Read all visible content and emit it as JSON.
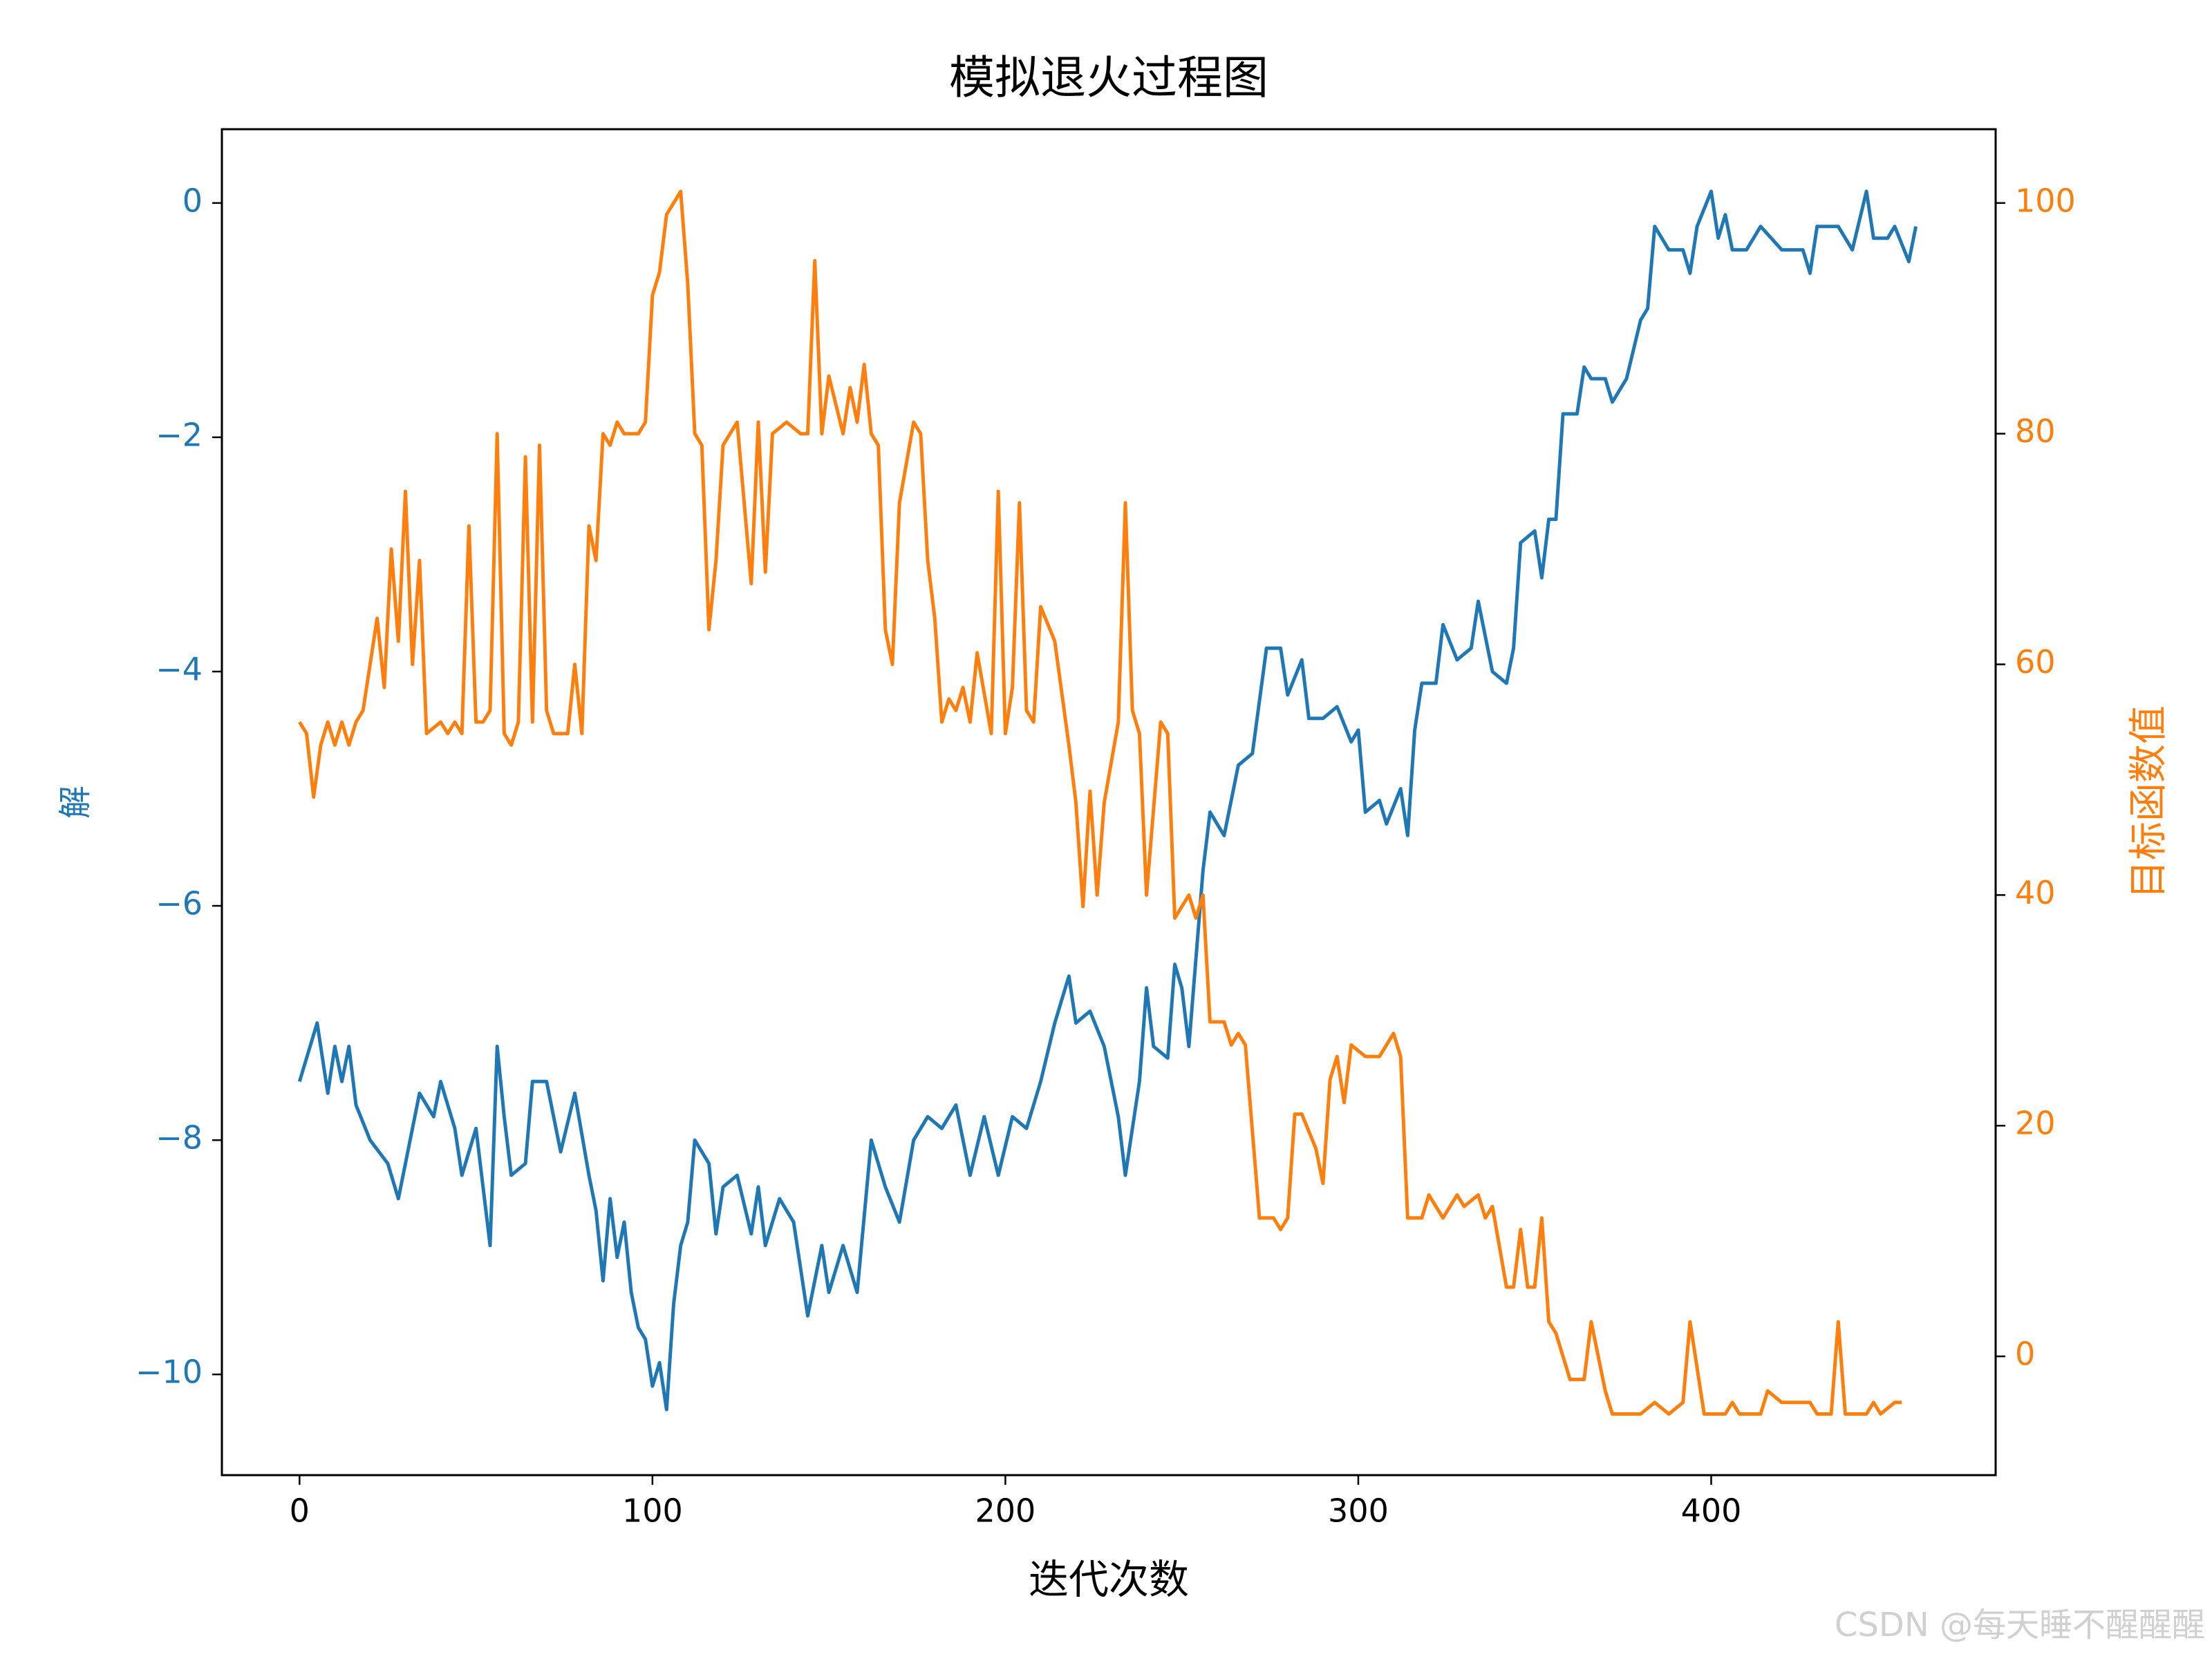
{
  "chart_data": {
    "type": "line",
    "title": "模拟退火过程图",
    "xlabel": "迭代次数",
    "ylabel": "解",
    "y2label": "目标函数值",
    "watermark": "CSDN @每天睡不醒醒醒",
    "xlim": [
      -22,
      480.6
    ],
    "ylim": [
      -10.86,
      0.63
    ],
    "y2lim": [
      -10.3,
      106.4
    ],
    "xticks": [
      0,
      100,
      200,
      300,
      400
    ],
    "yticks": [
      {
        "value": -10,
        "label": "−10"
      },
      {
        "value": -8,
        "label": "−8"
      },
      {
        "value": -6,
        "label": "−6"
      },
      {
        "value": -4,
        "label": "−4"
      },
      {
        "value": -2,
        "label": "−2"
      },
      0
    ],
    "y2ticks": [
      0,
      20,
      40,
      60,
      80,
      100
    ],
    "ycolor": "#1f77b4",
    "y2color": "#ff7f0e",
    "series": [
      {
        "name": "解",
        "color": "#1f77b4",
        "axis": "y",
        "x": [
          0,
          5,
          8,
          10,
          12,
          14,
          16,
          20,
          25,
          28,
          30,
          34,
          38,
          40,
          44,
          46,
          50,
          54,
          56,
          58,
          60,
          64,
          66,
          70,
          74,
          78,
          82,
          84,
          86,
          88,
          90,
          92,
          94,
          96,
          98,
          100,
          102,
          104,
          106,
          108,
          110,
          112,
          116,
          118,
          120,
          124,
          128,
          130,
          132,
          136,
          140,
          144,
          148,
          150,
          154,
          158,
          162,
          166,
          170,
          174,
          178,
          182,
          186,
          190,
          194,
          198,
          202,
          206,
          210,
          214,
          218,
          220,
          224,
          228,
          232,
          234,
          238,
          240,
          242,
          246,
          248,
          250,
          252,
          256,
          258,
          262,
          266,
          270,
          274,
          278,
          280,
          284,
          286,
          290,
          294,
          298,
          300,
          302,
          306,
          308,
          312,
          314,
          316,
          318,
          322,
          324,
          328,
          332,
          334,
          338,
          342,
          344,
          346,
          350,
          352,
          354,
          356,
          358,
          362,
          364,
          366,
          370,
          372,
          376,
          380,
          382,
          384,
          388,
          392,
          394,
          396,
          400,
          402,
          404,
          406,
          410,
          414,
          420,
          426,
          428,
          430,
          436,
          440,
          444,
          446,
          450,
          452,
          456,
          458
        ],
        "values": [
          -7.5,
          -7.0,
          -7.6,
          -7.2,
          -7.5,
          -7.2,
          -7.7,
          -8.0,
          -8.2,
          -8.5,
          -8.2,
          -7.6,
          -7.8,
          -7.5,
          -7.9,
          -8.3,
          -7.9,
          -8.9,
          -7.2,
          -7.8,
          -8.3,
          -8.2,
          -7.5,
          -7.5,
          -8.1,
          -7.6,
          -8.3,
          -8.6,
          -9.2,
          -8.5,
          -9.0,
          -8.7,
          -9.3,
          -9.6,
          -9.7,
          -10.1,
          -9.9,
          -10.3,
          -9.4,
          -8.9,
          -8.7,
          -8.0,
          -8.2,
          -8.8,
          -8.4,
          -8.3,
          -8.8,
          -8.4,
          -8.9,
          -8.5,
          -8.7,
          -9.5,
          -8.9,
          -9.3,
          -8.9,
          -9.3,
          -8.0,
          -8.4,
          -8.7,
          -8.0,
          -7.8,
          -7.9,
          -7.7,
          -8.3,
          -7.8,
          -8.3,
          -7.8,
          -7.9,
          -7.5,
          -7.0,
          -6.6,
          -7.0,
          -6.9,
          -7.2,
          -7.8,
          -8.3,
          -7.5,
          -6.7,
          -7.2,
          -7.3,
          -6.5,
          -6.7,
          -7.2,
          -5.7,
          -5.2,
          -5.4,
          -4.8,
          -4.7,
          -3.8,
          -3.8,
          -4.2,
          -3.9,
          -4.4,
          -4.4,
          -4.3,
          -4.6,
          -4.5,
          -5.2,
          -5.1,
          -5.3,
          -5.0,
          -5.4,
          -4.5,
          -4.1,
          -4.1,
          -3.6,
          -3.9,
          -3.8,
          -3.4,
          -4.0,
          -4.1,
          -3.8,
          -2.9,
          -2.8,
          -3.2,
          -2.7,
          -2.7,
          -1.8,
          -1.8,
          -1.4,
          -1.5,
          -1.5,
          -1.7,
          -1.5,
          -1.0,
          -0.9,
          -0.2,
          -0.4,
          -0.4,
          -0.6,
          -0.2,
          0.1,
          -0.3,
          -0.1,
          -0.4,
          -0.4,
          -0.2,
          -0.4,
          -0.4,
          -0.6,
          -0.2,
          -0.2,
          -0.4,
          0.1,
          -0.3,
          -0.3,
          -0.2,
          -0.5,
          -0.2
        ]
      },
      {
        "name": "目标函数值",
        "color": "#ff7f0e",
        "axis": "y2",
        "x": [
          0,
          2,
          4,
          6,
          8,
          10,
          12,
          14,
          16,
          18,
          20,
          22,
          24,
          26,
          28,
          30,
          32,
          34,
          36,
          40,
          42,
          44,
          46,
          48,
          50,
          52,
          54,
          56,
          58,
          60,
          62,
          64,
          66,
          68,
          70,
          72,
          76,
          78,
          80,
          82,
          84,
          86,
          88,
          90,
          92,
          96,
          98,
          100,
          102,
          104,
          106,
          108,
          110,
          112,
          114,
          116,
          118,
          120,
          124,
          128,
          130,
          132,
          134,
          138,
          142,
          144,
          146,
          148,
          150,
          154,
          156,
          158,
          160,
          162,
          164,
          166,
          168,
          170,
          174,
          176,
          178,
          180,
          182,
          184,
          186,
          188,
          190,
          192,
          196,
          198,
          200,
          202,
          204,
          206,
          208,
          210,
          214,
          218,
          220,
          222,
          224,
          226,
          228,
          232,
          234,
          236,
          238,
          240,
          244,
          246,
          248,
          252,
          254,
          256,
          258,
          262,
          264,
          266,
          268,
          272,
          276,
          278,
          280,
          282,
          284,
          288,
          290,
          292,
          294,
          296,
          298,
          302,
          306,
          310,
          312,
          314,
          318,
          320,
          324,
          328,
          330,
          334,
          336,
          338,
          342,
          344,
          346,
          348,
          350,
          352,
          354,
          356,
          360,
          364,
          366,
          370,
          372,
          376,
          380,
          384,
          388,
          392,
          394,
          398,
          400,
          404,
          406,
          408,
          414,
          416,
          420,
          424,
          428,
          430,
          434,
          436,
          438,
          444,
          446,
          448,
          452,
          454
        ],
        "values": [
          55,
          54,
          48.5,
          53,
          55,
          53,
          55,
          53,
          55,
          56,
          60,
          64,
          58,
          70,
          62,
          75,
          60,
          69,
          54,
          55,
          54,
          55,
          54,
          72,
          55,
          55,
          56,
          80,
          54,
          53,
          55,
          78,
          55,
          79,
          56,
          54,
          54,
          60,
          54,
          72,
          69,
          80,
          79,
          81,
          80,
          80,
          81,
          92,
          94,
          99,
          100,
          101,
          93,
          80,
          79,
          63,
          69,
          79,
          81,
          67,
          81,
          68,
          80,
          81,
          80,
          80,
          95,
          80,
          85,
          80,
          84,
          81,
          86,
          80,
          79,
          63,
          60,
          74,
          81,
          80,
          69,
          64,
          55,
          57,
          56,
          58,
          55,
          61,
          54,
          75,
          54,
          58,
          74,
          56,
          55,
          65,
          62,
          53,
          48,
          39,
          49,
          40,
          48,
          55,
          74,
          56,
          54,
          40,
          55,
          54,
          38,
          40,
          38,
          40,
          29,
          29,
          27,
          28,
          27,
          12,
          12,
          11,
          12,
          21,
          21,
          18,
          15,
          24,
          26,
          22,
          27,
          26,
          26,
          28,
          26,
          12,
          12,
          14,
          12,
          14,
          13,
          14,
          12,
          13,
          6,
          6,
          11,
          6,
          6,
          12,
          3,
          2,
          -2,
          -2,
          3,
          -3,
          -5,
          -5,
          -5,
          -4,
          -5,
          -4,
          3,
          -5,
          -5,
          -5,
          -4,
          -5,
          -5,
          -3,
          -4,
          -4,
          -4,
          -5,
          -5,
          3,
          -5,
          -5,
          -4,
          -5,
          -4,
          -4
        ]
      }
    ]
  }
}
